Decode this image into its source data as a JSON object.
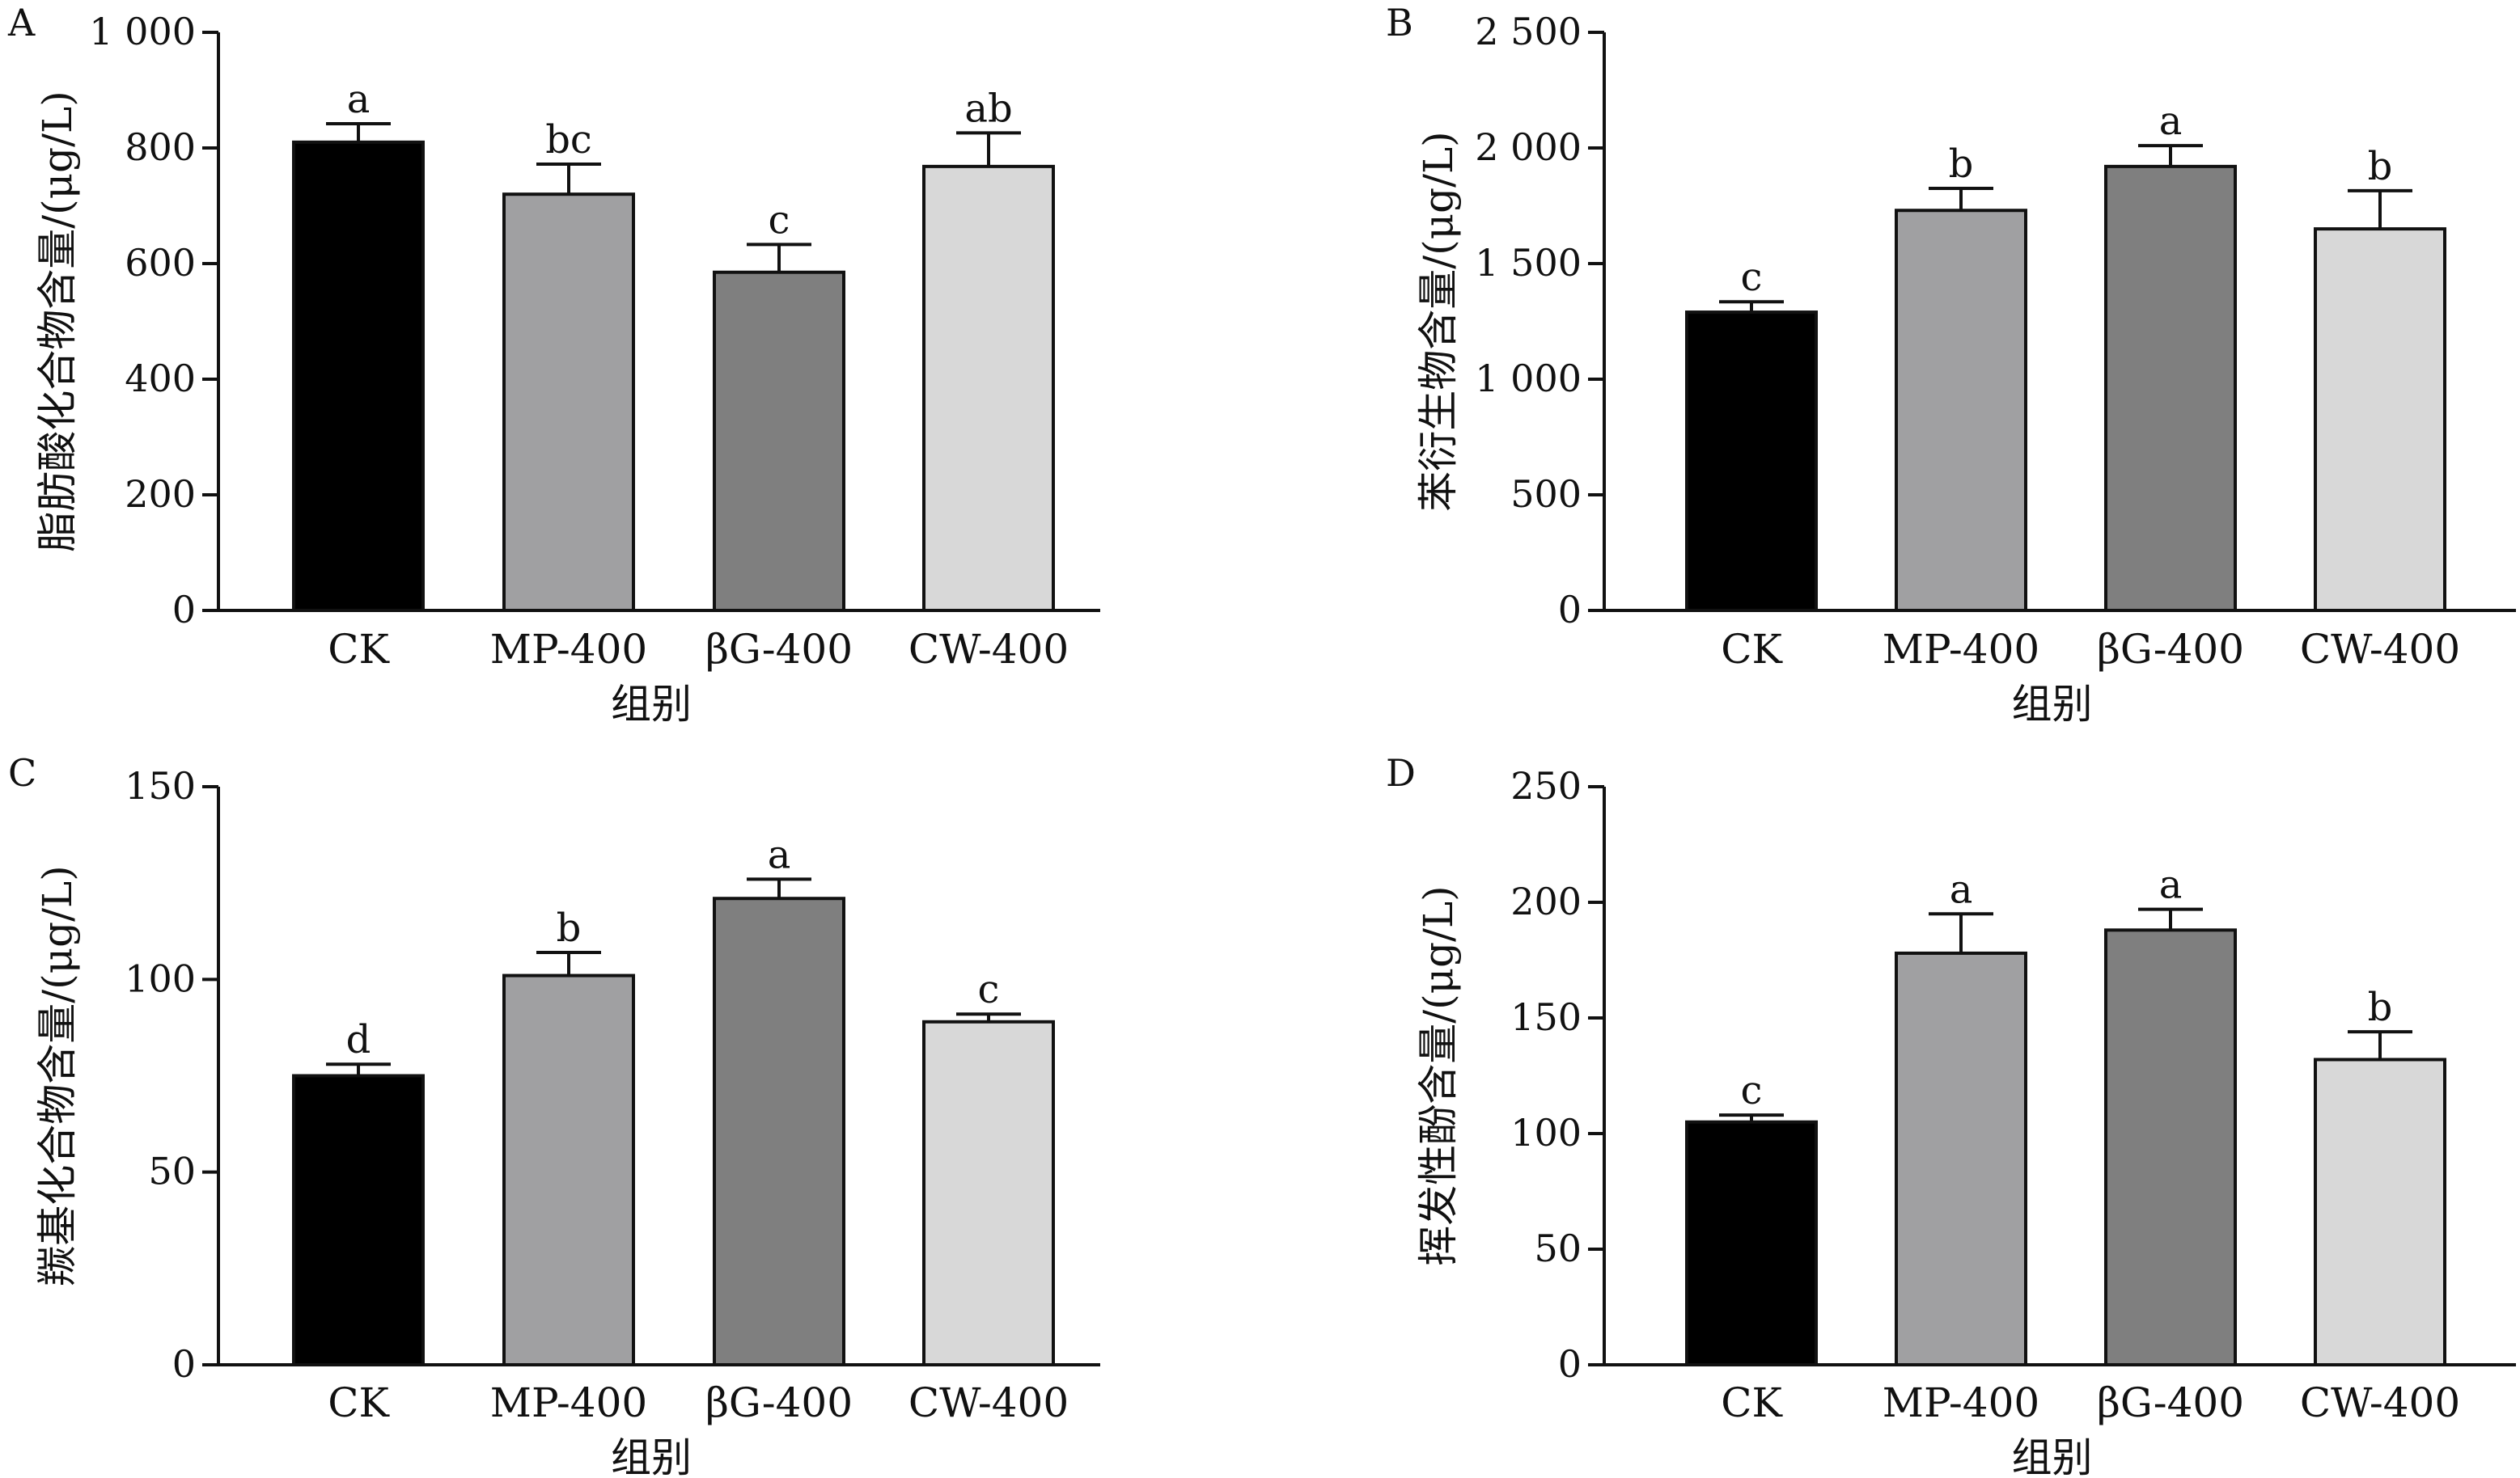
{
  "chart_data": [
    {
      "type": "bar",
      "panel": "A",
      "categories": [
        "CK",
        "MP-400",
        "βG-400",
        "CW-400"
      ],
      "values": [
        810,
        720,
        585,
        768
      ],
      "errors": [
        32,
        52,
        48,
        58
      ],
      "significance": [
        "a",
        "bc",
        "c",
        "ab"
      ],
      "colors": [
        "#000000",
        "#a0a0a2",
        "#7f7f7f",
        "#d8d8d8"
      ],
      "xlabel": "组别",
      "ylabel": "脂肪酸化合物含量/(μg/L)",
      "ylim": [
        0,
        1000
      ],
      "yticks": [
        0,
        200,
        400,
        600,
        800,
        1000
      ],
      "ytick_labels": [
        "0",
        "200",
        "400",
        "600",
        "800",
        "1 000"
      ],
      "grid": false
    },
    {
      "type": "bar",
      "panel": "B",
      "categories": [
        "CK",
        "MP-400",
        "βG-400",
        "CW-400"
      ],
      "values": [
        1290,
        1730,
        1920,
        1650
      ],
      "errors": [
        45,
        95,
        90,
        165
      ],
      "significance": [
        "c",
        "b",
        "a",
        "b"
      ],
      "colors": [
        "#000000",
        "#a0a0a2",
        "#7f7f7f",
        "#d8d8d8"
      ],
      "xlabel": "组别",
      "ylabel": "苯衍生物含量/(μg/L)",
      "ylim": [
        0,
        2500
      ],
      "yticks": [
        0,
        500,
        1000,
        1500,
        2000,
        2500
      ],
      "ytick_labels": [
        "0",
        "500",
        "1 000",
        "1 500",
        "2 000",
        "2 500"
      ],
      "grid": false
    },
    {
      "type": "bar",
      "panel": "C",
      "categories": [
        "CK",
        "MP-400",
        "βG-400",
        "CW-400"
      ],
      "values": [
        75,
        101,
        121,
        89
      ],
      "errors": [
        3,
        6,
        5,
        2
      ],
      "significance": [
        "d",
        "b",
        "a",
        "c"
      ],
      "colors": [
        "#000000",
        "#a0a0a2",
        "#7f7f7f",
        "#d8d8d8"
      ],
      "xlabel": "组别",
      "ylabel": "羰基化合物含量/(μg/L)",
      "ylim": [
        0,
        150
      ],
      "yticks": [
        0,
        50,
        100,
        150
      ],
      "ytick_labels": [
        "0",
        "50",
        "100",
        "150"
      ],
      "grid": false
    },
    {
      "type": "bar",
      "panel": "D",
      "categories": [
        "CK",
        "MP-400",
        "βG-400",
        "CW-400"
      ],
      "values": [
        105,
        178,
        188,
        132
      ],
      "errors": [
        3,
        17,
        9,
        12
      ],
      "significance": [
        "c",
        "a",
        "a",
        "b"
      ],
      "colors": [
        "#000000",
        "#a0a0a2",
        "#7f7f7f",
        "#d8d8d8"
      ],
      "xlabel": "组别",
      "ylabel": "挥发性酚含量/(μg/L)",
      "ylim": [
        0,
        250
      ],
      "yticks": [
        0,
        50,
        100,
        150,
        200,
        250
      ],
      "ytick_labels": [
        "0",
        "50",
        "100",
        "150",
        "200",
        "250"
      ],
      "grid": false
    }
  ]
}
